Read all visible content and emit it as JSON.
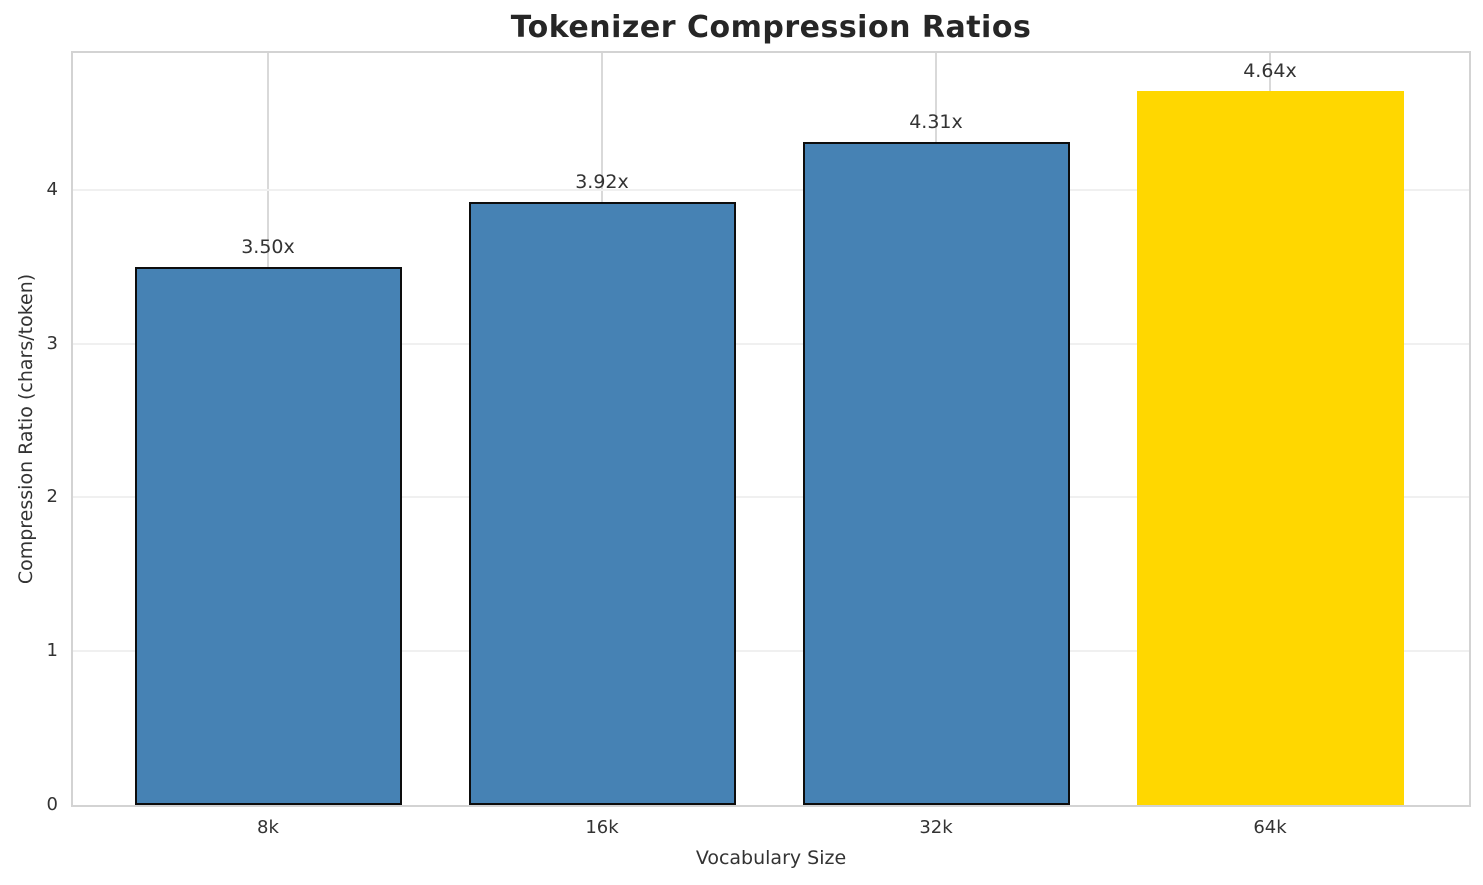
{
  "chart_data": {
    "type": "bar",
    "title": "Tokenizer Compression Ratios",
    "xlabel": "Vocabulary Size",
    "ylabel": "Compression Ratio (chars/token)",
    "categories": [
      "8k",
      "16k",
      "32k",
      "64k"
    ],
    "values": [
      3.5,
      3.92,
      4.31,
      4.64
    ],
    "bar_labels": [
      "3.50x",
      "3.92x",
      "4.31x",
      "4.64x"
    ],
    "bar_colors": [
      "#4682b4",
      "#4682b4",
      "#4682b4",
      "#ffd700"
    ],
    "bar_edge_colors": [
      "#0d0d0d",
      "#0d0d0d",
      "#0d0d0d",
      "none"
    ],
    "highlight_color": "#ffd700",
    "base_color": "#4682b4",
    "yticks": [
      "0",
      "1",
      "2",
      "3",
      "4"
    ],
    "ytick_values": [
      0,
      1,
      2,
      3,
      4
    ],
    "ylim": [
      0,
      4.89
    ],
    "grid": true,
    "legend_position": "none",
    "bar_width_fraction": 0.8
  }
}
